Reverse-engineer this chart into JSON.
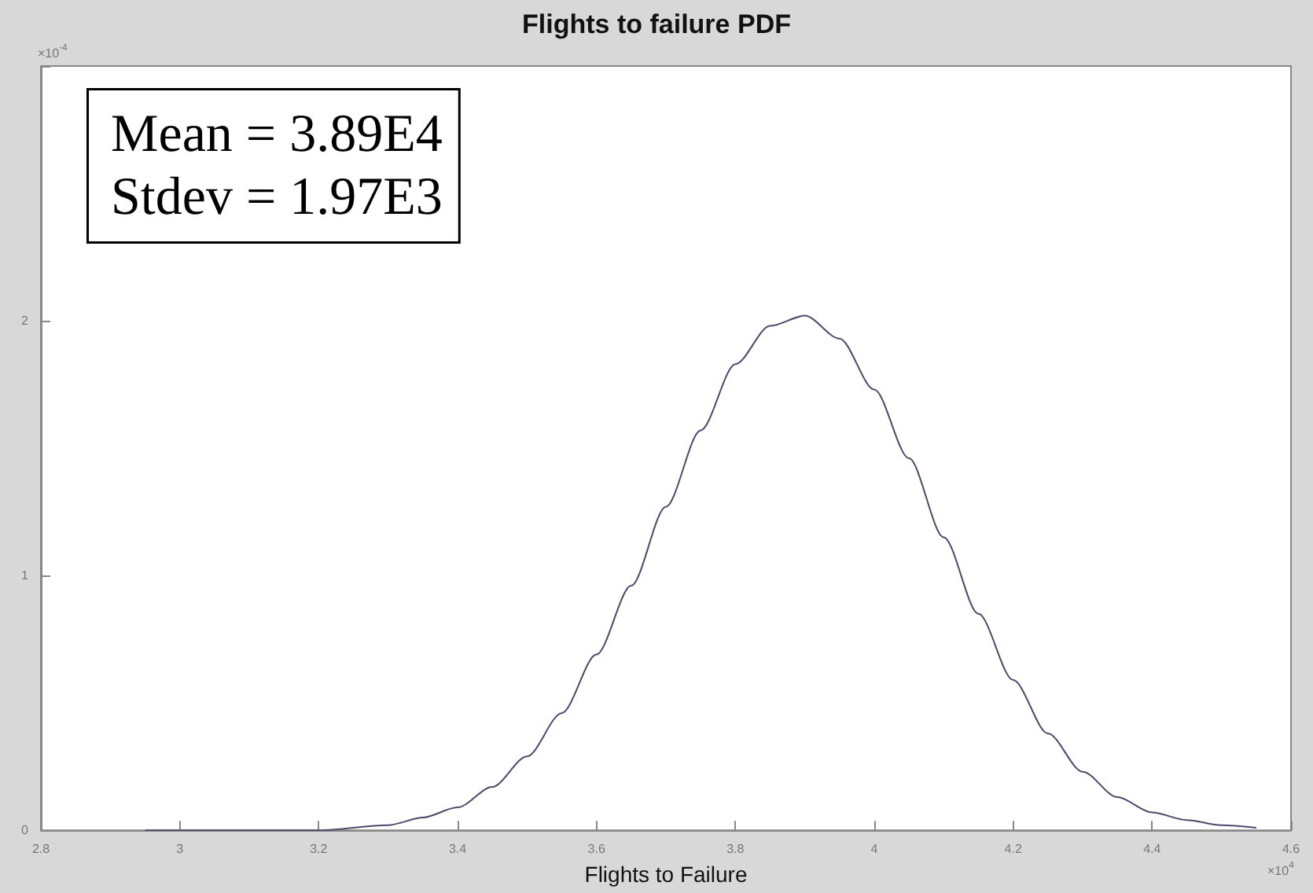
{
  "chart_data": {
    "type": "line",
    "title": "Flights to failure PDF",
    "xlabel": "Flights to Failure",
    "x": [
      2.95,
      3.0,
      3.1,
      3.2,
      3.3,
      3.35,
      3.4,
      3.45,
      3.5,
      3.55,
      3.6,
      3.65,
      3.7,
      3.75,
      3.8,
      3.85,
      3.9,
      3.95,
      4.0,
      4.05,
      4.1,
      4.15,
      4.2,
      4.25,
      4.3,
      4.35,
      4.4,
      4.45,
      4.5,
      4.55
    ],
    "series": [
      {
        "color": "#4a4a6a",
        "values": [
          0,
          0,
          0,
          0,
          0.02,
          0.05,
          0.09,
          0.17,
          0.29,
          0.46,
          0.69,
          0.96,
          1.27,
          1.57,
          1.83,
          1.98,
          2.02,
          1.93,
          1.73,
          1.46,
          1.15,
          0.85,
          0.59,
          0.38,
          0.23,
          0.13,
          0.07,
          0.04,
          0.02,
          0.01
        ]
      }
    ],
    "xlim": [
      2.8,
      4.6
    ],
    "xticks": [
      2.8,
      {
        "value": 3,
        "label": "3"
      },
      3.2,
      3.4,
      3.6,
      3.8,
      {
        "value": 4,
        "label": "4"
      },
      4.2,
      4.4,
      4.6
    ],
    "ylim": [
      0,
      3
    ],
    "yticks": [
      0,
      1,
      2,
      {
        "value": 3,
        "label": null
      }
    ],
    "annotations": [
      "Mean = 3.89E4\nStdev = 1.97E3",
      "×10$^{-4}$",
      "×10$^{4}$"
    ],
    "grid": false,
    "marker": "none",
    "line_style": "solid"
  }
}
